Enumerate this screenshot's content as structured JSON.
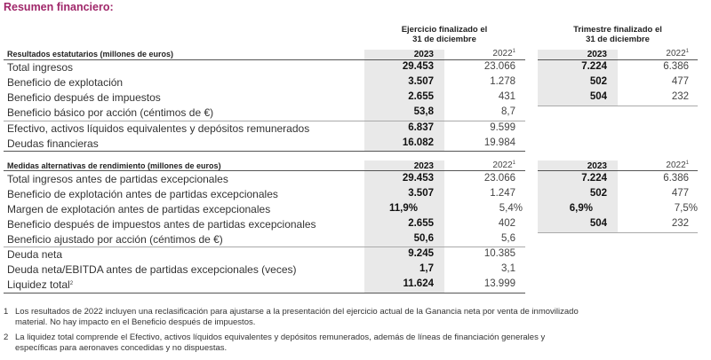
{
  "title": "Resumen financiero:",
  "headers": {
    "annual": "Ejercicio finalizado el 31 de diciembre",
    "annual_line1": "Ejercicio finalizado el",
    "annual_line2": "31 de diciembre",
    "quarter_line1": "Trimestre finalizado el",
    "quarter_line2": "31 de diciembre"
  },
  "sections": [
    {
      "title": "Resultados estatutarios (millones de euros)",
      "col_2023": "2023",
      "col_2022": "2022",
      "col_2022_note": "1",
      "rows": [
        {
          "label": "Total ingresos",
          "y2023": "29.453",
          "y2022": "23.066",
          "q2023": "7.224",
          "q2022": "6.386"
        },
        {
          "label": "Beneficio de explotación",
          "y2023": "3.507",
          "y2022": "1.278",
          "q2023": "502",
          "q2022": "477"
        },
        {
          "label": "Beneficio después de impuestos",
          "y2023": "2.655",
          "y2022": "431",
          "q2023": "504",
          "q2022": "232"
        },
        {
          "label": "Beneficio básico por acción (céntimos de €)",
          "y2023": "53,8",
          "y2022": "8,7"
        },
        {
          "label": "Efectivo, activos líquidos equivalentes y depósitos remunerados",
          "y2023": "6.837",
          "y2022": "9.599"
        },
        {
          "label": "Deudas financieras",
          "y2023": "16.082",
          "y2022": "19.984"
        }
      ]
    },
    {
      "title": "Medidas alternativas de rendimiento (millones de euros)",
      "col_2023": "2023",
      "col_2022": "2022",
      "col_2022_note": "1",
      "rows": [
        {
          "label": "Total ingresos antes de partidas excepcionales",
          "y2023": "29.453",
          "y2022": "23.066",
          "q2023": "7.224",
          "q2022": "6.386"
        },
        {
          "label": "Beneficio de explotación antes de partidas excepcionales",
          "y2023": "3.507",
          "y2022": "1.247",
          "q2023": "502",
          "q2022": "477"
        },
        {
          "label": "Margen de explotación antes de partidas excepcionales",
          "y2023": "11,9%",
          "y2022": "5,4%",
          "q2023": "6,9%",
          "q2022": "7,5%"
        },
        {
          "label": "Beneficio después de impuestos antes de partidas excepcionales",
          "y2023": "2.655",
          "y2022": "402",
          "q2023": "504",
          "q2022": "232"
        },
        {
          "label": "Beneficio ajustado por acción (céntimos de €)",
          "y2023": "50,6",
          "y2022": "5,6"
        },
        {
          "label": "Deuda neta",
          "y2023": "9.245",
          "y2022": "10.385"
        },
        {
          "label": "Deuda neta/EBITDA antes de partidas excepcionales (veces)",
          "y2023": "1,7",
          "y2022": "3,1"
        },
        {
          "label": "Liquidez total",
          "label_note": "2",
          "y2023": "11.624",
          "y2022": "13.999"
        }
      ]
    }
  ],
  "footnotes": [
    {
      "num": "1",
      "line1": "Los resultados de 2022 incluyen una reclasificación para ajustarse a la presentación del ejercicio actual de la Ganancia neta por venta de inmovilizado",
      "line2": "material. No hay impacto en el Beneficio después de impuestos."
    },
    {
      "num": "2",
      "line1": "La liquidez total comprende el Efectivo, activos líquidos equivalentes y depósitos remunerados, además de líneas de financiación generales y",
      "line2": "específicas para aeronaves concedidas y no dispuestas."
    }
  ],
  "colors": {
    "title": "#a0276a",
    "shade": "#e9e9e9"
  }
}
